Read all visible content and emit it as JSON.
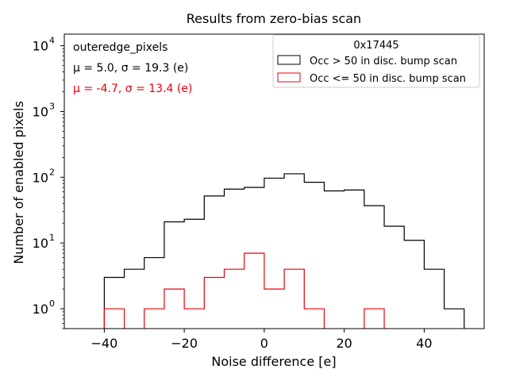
{
  "chart_data": {
    "type": "histogram",
    "title": "Results from zero-bias scan",
    "xlabel": "Noise difference [e]",
    "ylabel": "Number of enabled pixels",
    "xlim": [
      -50,
      55
    ],
    "ylim": [
      0.5,
      15000
    ],
    "yscale": "log",
    "xticks": [
      -40,
      -20,
      0,
      20,
      40
    ],
    "xtick_labels": [
      "−40",
      "−20",
      "0",
      "20",
      "40"
    ],
    "yticks": [
      1,
      10,
      100,
      1000,
      10000
    ],
    "ytick_labels": [
      {
        "base": "10",
        "exp": "0"
      },
      {
        "base": "10",
        "exp": "1"
      },
      {
        "base": "10",
        "exp": "2"
      },
      {
        "base": "10",
        "exp": "3"
      },
      {
        "base": "10",
        "exp": "4"
      }
    ],
    "bin_edges": [
      -40,
      -35,
      -30,
      -25,
      -20,
      -15,
      -10,
      -5,
      0,
      5,
      10,
      15,
      20,
      25,
      30,
      35,
      40,
      45,
      50
    ],
    "series": [
      {
        "name": "Occ > 50 in disc. bump scan",
        "color": "#000000",
        "values": [
          3,
          4,
          6,
          21,
          23,
          52,
          66,
          70,
          97,
          113,
          84,
          62,
          64,
          37,
          18,
          11,
          4,
          1
        ]
      },
      {
        "name": "Occ <= 50 in disc. bump scan",
        "color": "#e8000b",
        "values": [
          1,
          0,
          1,
          2,
          1,
          3,
          4,
          7,
          2,
          4,
          1,
          0,
          0,
          1,
          0,
          0,
          0,
          0
        ]
      }
    ],
    "annotations": {
      "label": "outeredge_pixels",
      "stats_black": "μ = 5.0, σ = 19.3 (e)",
      "stats_red": "μ = -4.7, σ = 13.4 (e)"
    },
    "legend": {
      "title": "0x17445",
      "location": "upper right"
    }
  }
}
